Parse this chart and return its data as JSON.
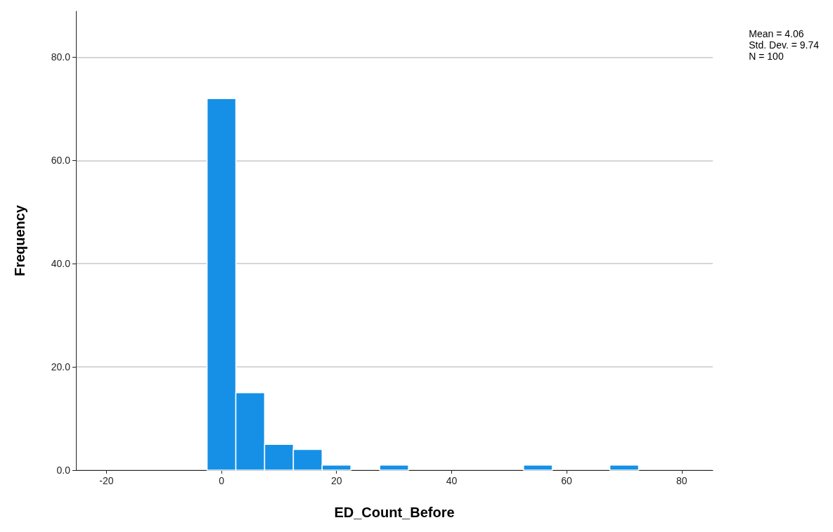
{
  "chart_data": {
    "type": "histogram",
    "xlabel": "ED_Count_Before",
    "ylabel": "Frequency",
    "bins": [
      -2.5,
      2.5,
      7.5,
      12.5,
      17.5,
      22.5,
      27.5,
      32.5,
      37.5,
      42.5,
      47.5,
      52.5,
      57.5,
      62.5,
      67.5,
      72.5
    ],
    "values": [
      72,
      15,
      5,
      4,
      1,
      0,
      1,
      0,
      0,
      0,
      0,
      1,
      0,
      0,
      1
    ],
    "color": "#1590e6",
    "xlim": [
      -25.3,
      85.4
    ],
    "xticks": [
      -20,
      0,
      20,
      40,
      60,
      80
    ],
    "ylim": [
      0,
      88.9
    ],
    "yticks": [
      {
        "value": 0,
        "label": "0.0"
      },
      {
        "value": 20,
        "label": "20.0"
      },
      {
        "value": 40,
        "label": "40.0"
      },
      {
        "value": 60,
        "label": "60.0"
      },
      {
        "value": 80,
        "label": "80.0"
      }
    ],
    "grid": "y",
    "annotations": [
      "Mean = 4.06",
      "Std. Dev. = 9.74",
      "N = 100"
    ]
  }
}
